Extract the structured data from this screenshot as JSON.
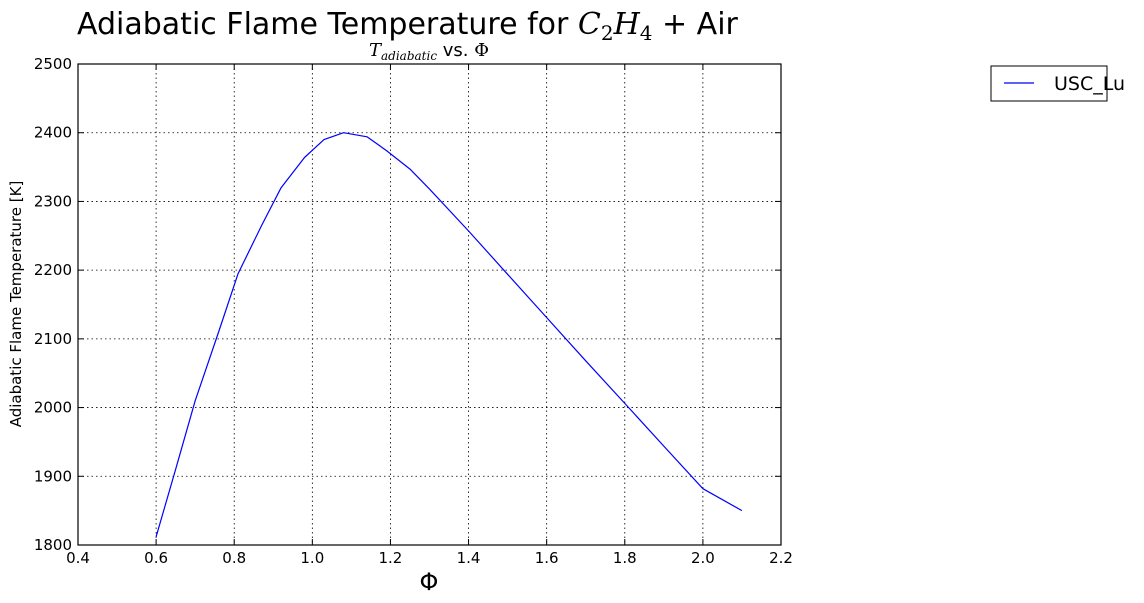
{
  "chart_data": {
    "type": "line",
    "title": {
      "prefix": "Adiabatic Flame Temperature for ",
      "formula": {
        "c": "C",
        "c_sub": "2",
        "h": "H",
        "h_sub": "4"
      },
      "suffix": " + Air"
    },
    "subtitle": {
      "symbol": "T",
      "symbol_sub": "adiabatic",
      "middle": " vs. ",
      "phi": "Φ"
    },
    "xlabel": "Φ",
    "ylabel": "Adiabatic Flame Temperature [K]",
    "xlim": [
      0.4,
      2.2
    ],
    "ylim": [
      1800,
      2500
    ],
    "xticks": [
      0.4,
      0.6,
      0.8,
      1.0,
      1.2,
      1.4,
      1.6,
      1.8,
      2.0,
      2.2
    ],
    "xtick_labels": [
      "0.4",
      "0.6",
      "0.8",
      "1.0",
      "1.2",
      "1.4",
      "1.6",
      "1.8",
      "2.0",
      "2.2"
    ],
    "yticks": [
      1800,
      1900,
      2000,
      2100,
      2200,
      2300,
      2400,
      2500
    ],
    "ytick_labels": [
      "1800",
      "1900",
      "2000",
      "2100",
      "2200",
      "2300",
      "2400",
      "2500"
    ],
    "grid": true,
    "legend_position": "outside-top-right",
    "series": [
      {
        "name": "USC_Lu",
        "color": "#0000ff",
        "x": [
          0.6,
          0.65,
          0.7,
          0.76,
          0.81,
          0.87,
          0.92,
          0.98,
          1.03,
          1.08,
          1.14,
          1.19,
          1.25,
          1.3,
          1.4,
          1.5,
          1.6,
          1.7,
          1.8,
          1.9,
          2.0,
          2.1
        ],
        "y": [
          1812,
          1910,
          2010,
          2110,
          2195,
          2265,
          2320,
          2364,
          2390,
          2400,
          2394,
          2374,
          2347,
          2318,
          2257,
          2194,
          2131,
          2068,
          2006,
          1944,
          1882,
          1850
        ]
      }
    ]
  }
}
